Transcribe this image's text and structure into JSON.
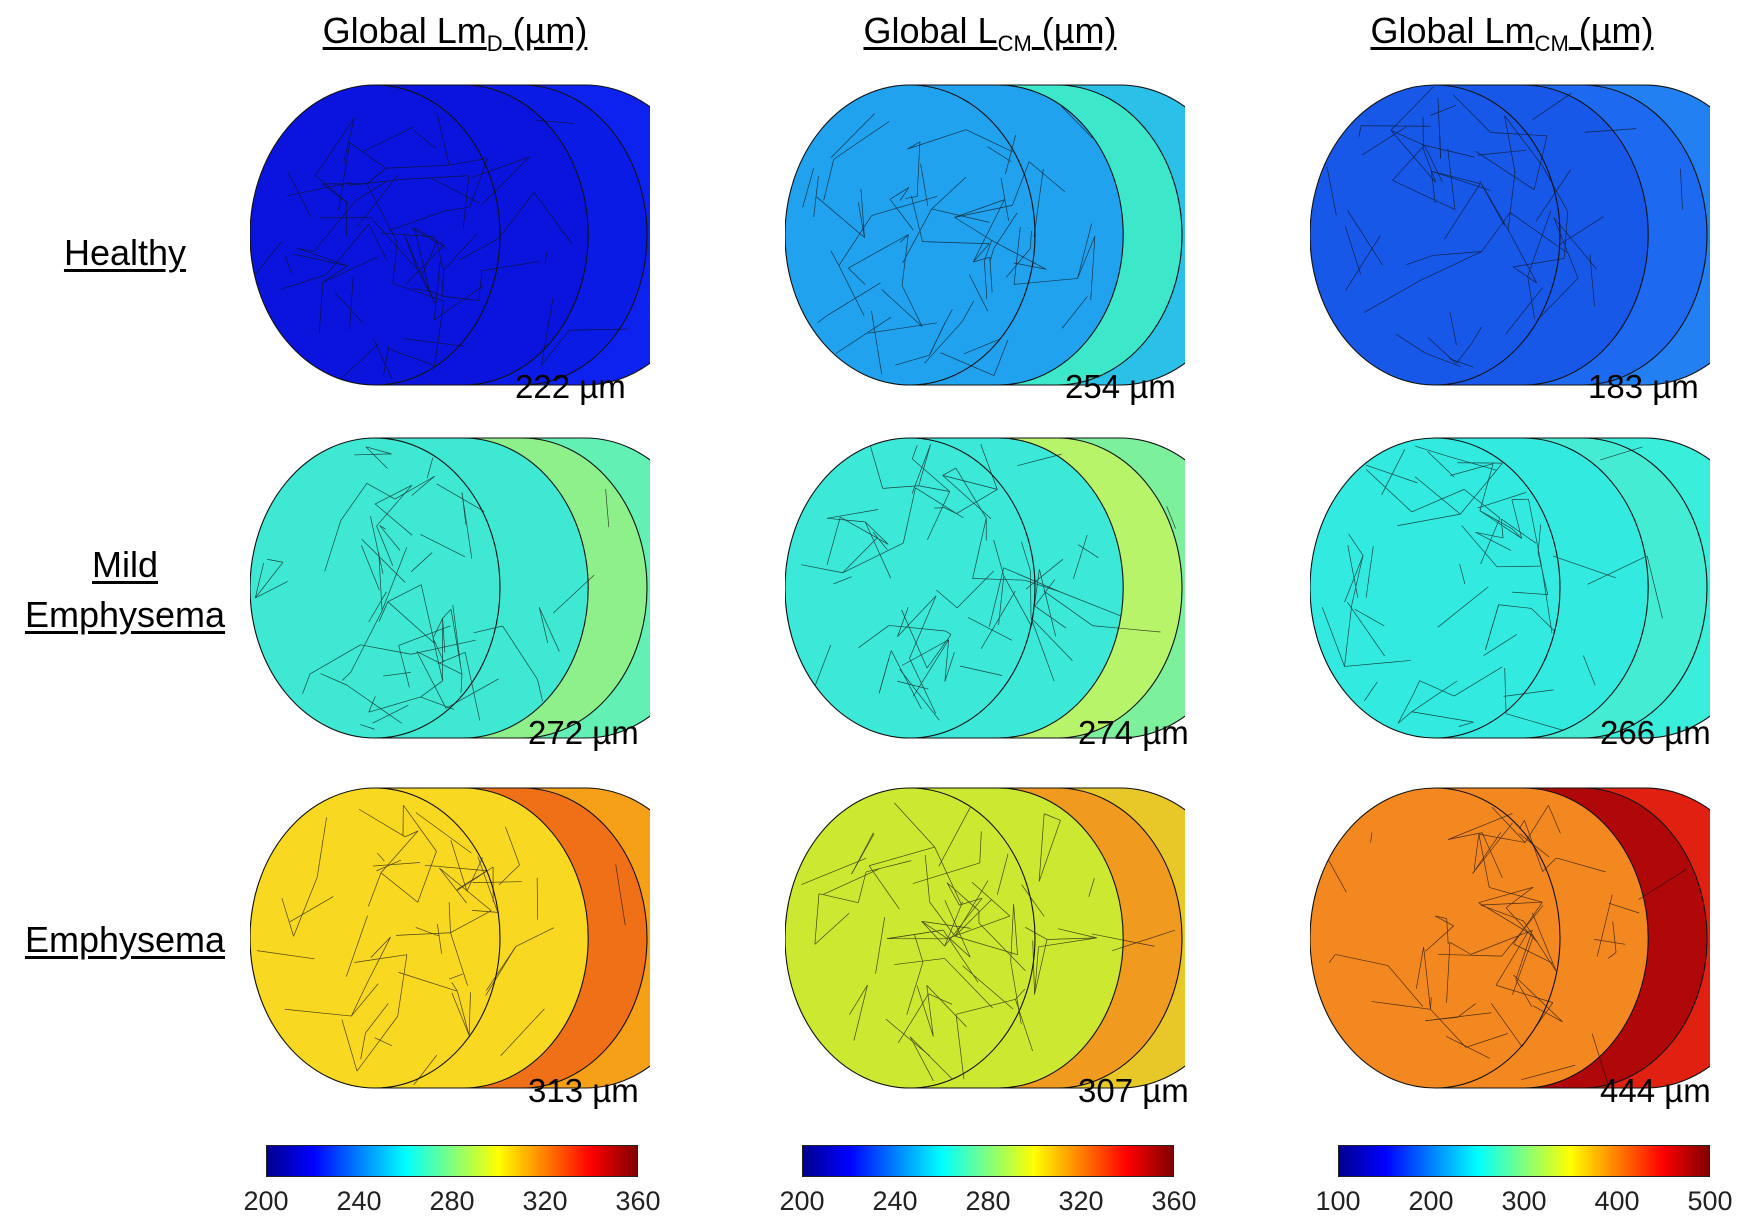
{
  "columns": [
    {
      "title_main": "Global Lm",
      "title_sub": "D",
      "title_unit": " (µm)",
      "values": [
        "222 µm",
        "272 µm",
        "313 µm"
      ],
      "colorbar_ticks": [
        "200",
        "240",
        "280",
        "320",
        "360"
      ]
    },
    {
      "title_main": "Global L",
      "title_sub": "CM",
      "title_unit": " (µm)",
      "values": [
        "254 µm",
        "274 µm",
        "307 µm"
      ],
      "colorbar_ticks": [
        "200",
        "240",
        "280",
        "320",
        "360"
      ]
    },
    {
      "title_main": "Global Lm",
      "title_sub": "CM",
      "title_unit": " (µm)",
      "values": [
        "183 µm",
        "266 µm",
        "444 µm"
      ],
      "colorbar_ticks": [
        "100",
        "200",
        "300",
        "400",
        "500"
      ]
    }
  ],
  "rows": [
    {
      "label_line1": "Healthy",
      "label_line2": ""
    },
    {
      "label_line1": "Mild",
      "label_line2": "Emphysema"
    },
    {
      "label_line1": "Emphysema",
      "label_line2": ""
    }
  ],
  "colors": {
    "r0c0": [
      "#0a14dc",
      "#0b1be6",
      "#0d22ee"
    ],
    "r0c1": [
      "#21a2ee",
      "#3ce8c9",
      "#2ac0e8"
    ],
    "r0c2": [
      "#1858e8",
      "#1d6af0",
      "#2280f2"
    ],
    "r1c0": [
      "#3ee8d2",
      "#8ef08a",
      "#62f0b4"
    ],
    "r1c1": [
      "#3ce8d8",
      "#b8f46a",
      "#7cf09a"
    ],
    "r1c2": [
      "#32eadf",
      "#44ecd4",
      "#3aeedc"
    ],
    "r2c0": [
      "#f8d820",
      "#f07018",
      "#f6a018"
    ],
    "r2c1": [
      "#cce830",
      "#f09a20",
      "#e8c828"
    ],
    "r2c2": [
      "#f48820",
      "#b00808",
      "#e02010"
    ]
  }
}
